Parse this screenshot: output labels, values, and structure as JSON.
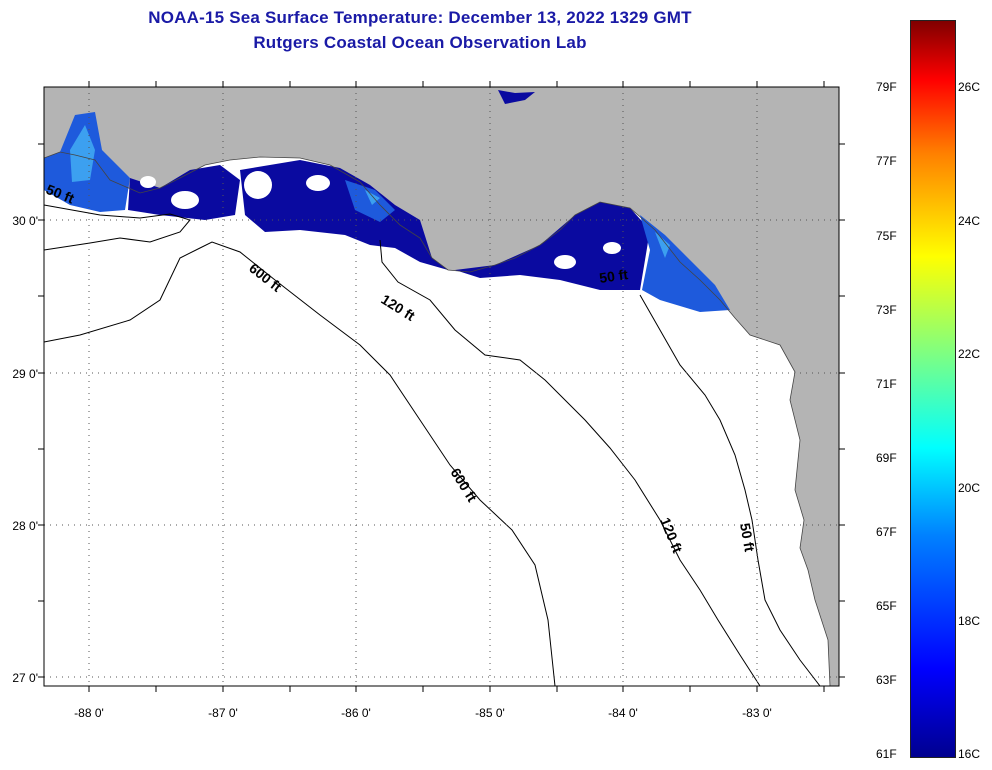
{
  "title": {
    "line1": "NOAA-15 Sea Surface Temperature:  December 13, 2022 1329 GMT",
    "line2": "Rutgers Coastal Ocean Observation Lab"
  },
  "map": {
    "lat_labels": [
      "30 0'",
      "29 0'",
      "28 0'",
      "27 0'"
    ],
    "lon_labels": [
      "-88 0'",
      "-87 0'",
      "-86 0'",
      "-85 0'",
      "-84 0'",
      "-83 0'"
    ],
    "contour_labels": [
      "50 ft",
      "600 ft",
      "120 ft",
      "50 ft",
      "600 ft",
      "120 ft",
      "50 ft"
    ],
    "colors": {
      "land": "#b4b4b4",
      "water": "#ffffff",
      "sst_dark": "#0a0aa0",
      "sst_mid": "#1e5adc",
      "sst_light": "#3ca0f0"
    }
  },
  "colorbar": {
    "fahrenheit_labels": [
      "79F",
      "77F",
      "75F",
      "73F",
      "71F",
      "69F",
      "67F",
      "65F",
      "63F",
      "61F"
    ],
    "celsius_labels": [
      "26C",
      "24C",
      "22C",
      "20C",
      "18C",
      "16C"
    ]
  }
}
